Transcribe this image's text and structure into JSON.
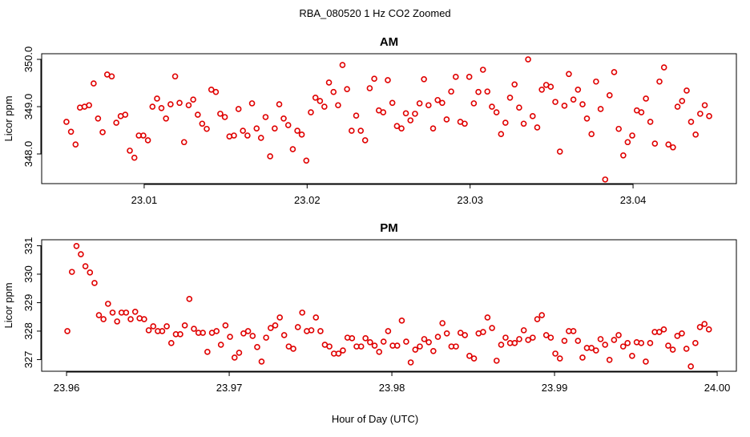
{
  "title": "RBA_080520  1 Hz CO2 Zoomed",
  "xlabel": "Hour of Day (UTC)",
  "chart_data": [
    {
      "type": "scatter",
      "title": "AM",
      "ylabel": "Licor ppm",
      "color": "#e00000",
      "xlim": [
        23.00371,
        23.04634
      ],
      "ylim": [
        347.373,
        350.119
      ],
      "xticks": [
        23.01,
        23.02,
        23.03,
        23.04
      ],
      "yticks": [
        {
          "value": 348,
          "label": "348.0"
        },
        {
          "value": 349,
          "label": "349.0"
        },
        {
          "value": 350,
          "label": "350.0"
        }
      ],
      "x": [
        23.00523,
        23.00551,
        23.00579,
        23.00606,
        23.00634,
        23.00662,
        23.0069,
        23.00717,
        23.00745,
        23.00773,
        23.00801,
        23.00829,
        23.00856,
        23.00884,
        23.00912,
        23.0094,
        23.00967,
        23.00995,
        23.01023,
        23.01051,
        23.01079,
        23.01106,
        23.01134,
        23.01162,
        23.0119,
        23.01217,
        23.01245,
        23.01273,
        23.01301,
        23.01329,
        23.01356,
        23.01384,
        23.01412,
        23.0144,
        23.01467,
        23.01495,
        23.01523,
        23.01551,
        23.01579,
        23.01606,
        23.01634,
        23.01662,
        23.0169,
        23.01717,
        23.01745,
        23.01773,
        23.01801,
        23.01829,
        23.01856,
        23.01884,
        23.01912,
        23.0194,
        23.01967,
        23.01995,
        23.02023,
        23.02051,
        23.02079,
        23.02106,
        23.02134,
        23.02162,
        23.0219,
        23.02217,
        23.02245,
        23.02273,
        23.02301,
        23.02329,
        23.02356,
        23.02384,
        23.02412,
        23.0244,
        23.02467,
        23.02495,
        23.02523,
        23.02551,
        23.02579,
        23.02606,
        23.02634,
        23.02662,
        23.0269,
        23.02717,
        23.02745,
        23.02773,
        23.02801,
        23.02829,
        23.02856,
        23.02884,
        23.02912,
        23.0294,
        23.02967,
        23.02995,
        23.03023,
        23.03051,
        23.03079,
        23.03106,
        23.03134,
        23.03162,
        23.0319,
        23.03217,
        23.03245,
        23.03273,
        23.03301,
        23.03329,
        23.03356,
        23.03384,
        23.03412,
        23.0344,
        23.03467,
        23.03495,
        23.03523,
        23.03551,
        23.03579,
        23.03606,
        23.03634,
        23.03662,
        23.0369,
        23.03717,
        23.03745,
        23.03773,
        23.03801,
        23.03829,
        23.03856,
        23.03884,
        23.03912,
        23.0394,
        23.03967,
        23.03995,
        23.04023,
        23.04051,
        23.04079,
        23.04106,
        23.04134,
        23.04162,
        23.0419,
        23.04217,
        23.04245,
        23.04273,
        23.04301,
        23.04329,
        23.04356,
        23.04384,
        23.04412,
        23.0444,
        23.04467
      ],
      "values": [
        348.68,
        348.47,
        348.2,
        348.98,
        349.0,
        349.03,
        349.49,
        348.75,
        348.46,
        349.68,
        349.64,
        348.66,
        348.8,
        348.83,
        348.07,
        347.92,
        348.39,
        348.39,
        348.29,
        349.0,
        349.17,
        348.97,
        348.75,
        349.05,
        349.64,
        349.08,
        348.25,
        349.03,
        349.15,
        348.83,
        348.64,
        348.53,
        349.36,
        349.31,
        348.85,
        348.78,
        348.37,
        348.39,
        348.95,
        348.49,
        348.39,
        349.07,
        348.54,
        348.34,
        348.78,
        347.95,
        348.54,
        349.05,
        348.75,
        348.61,
        348.1,
        348.49,
        348.41,
        347.86,
        348.88,
        349.19,
        349.12,
        349.0,
        349.51,
        349.31,
        349.03,
        349.88,
        349.37,
        348.49,
        348.81,
        348.49,
        348.29,
        349.39,
        349.59,
        348.92,
        348.88,
        349.56,
        349.08,
        348.59,
        348.54,
        348.86,
        348.71,
        348.85,
        349.07,
        349.58,
        349.03,
        348.54,
        349.14,
        349.08,
        348.73,
        349.32,
        349.63,
        348.68,
        348.64,
        349.63,
        349.07,
        349.31,
        349.78,
        349.32,
        349.0,
        348.88,
        348.42,
        348.66,
        349.19,
        349.47,
        348.98,
        348.64,
        350.0,
        348.8,
        348.56,
        349.36,
        349.46,
        349.42,
        349.1,
        348.05,
        349.02,
        349.69,
        349.15,
        349.36,
        349.05,
        348.75,
        348.42,
        349.53,
        348.95,
        347.46,
        349.24,
        349.73,
        348.53,
        347.97,
        348.25,
        348.39,
        348.92,
        348.88,
        349.17,
        348.68,
        348.22,
        349.53,
        349.83,
        348.2,
        348.14,
        349.0,
        349.12,
        349.34,
        348.68,
        348.41,
        348.85,
        349.03,
        348.8
      ]
    },
    {
      "type": "scatter",
      "title": "PM",
      "ylabel": "Licor ppm",
      "color": "#e00000",
      "xlim": [
        23.95847,
        24.00118
      ],
      "ylim": [
        326.59,
        331.21
      ],
      "xticks": [
        23.96,
        23.97,
        23.98,
        23.99,
        {
          "value": 24,
          "label": "24.00"
        }
      ],
      "yticks": [
        327,
        328,
        329,
        330,
        331
      ],
      "x": [
        23.96005,
        23.96033,
        23.96061,
        23.96088,
        23.96116,
        23.96144,
        23.96172,
        23.96199,
        23.96227,
        23.96255,
        23.96283,
        23.96311,
        23.96338,
        23.96366,
        23.96394,
        23.96422,
        23.96449,
        23.96477,
        23.96505,
        23.96533,
        23.96561,
        23.96588,
        23.96616,
        23.96644,
        23.96672,
        23.96699,
        23.96727,
        23.96755,
        23.96783,
        23.96811,
        23.96838,
        23.96866,
        23.96894,
        23.96922,
        23.96949,
        23.96977,
        23.97005,
        23.97033,
        23.97061,
        23.97088,
        23.97116,
        23.97144,
        23.97172,
        23.97199,
        23.97227,
        23.97255,
        23.97283,
        23.97311,
        23.97338,
        23.97366,
        23.97394,
        23.97422,
        23.97449,
        23.97477,
        23.97505,
        23.97533,
        23.97561,
        23.97588,
        23.97616,
        23.97644,
        23.97672,
        23.97699,
        23.97727,
        23.97755,
        23.97783,
        23.97811,
        23.97838,
        23.97866,
        23.97894,
        23.97922,
        23.97949,
        23.97977,
        23.98005,
        23.98033,
        23.98061,
        23.98088,
        23.98116,
        23.98144,
        23.98172,
        23.98199,
        23.98227,
        23.98255,
        23.98283,
        23.98311,
        23.98338,
        23.98366,
        23.98394,
        23.98422,
        23.98449,
        23.98477,
        23.98505,
        23.98533,
        23.98561,
        23.98588,
        23.98616,
        23.98644,
        23.98672,
        23.98699,
        23.98727,
        23.98755,
        23.98783,
        23.98811,
        23.98838,
        23.98866,
        23.98894,
        23.98922,
        23.98949,
        23.98977,
        23.99005,
        23.99033,
        23.99061,
        23.99088,
        23.99116,
        23.99144,
        23.99172,
        23.99199,
        23.99227,
        23.99255,
        23.99283,
        23.99311,
        23.99338,
        23.99366,
        23.99394,
        23.99422,
        23.99449,
        23.99477,
        23.99505,
        23.99533,
        23.99561,
        23.99588,
        23.99616,
        23.99644,
        23.99672,
        23.99699,
        23.99727,
        23.99755,
        23.99783,
        23.99811,
        23.99838,
        23.99866,
        23.99894,
        23.99922,
        23.99949
      ],
      "values": [
        328.0,
        330.08,
        330.99,
        330.7,
        330.28,
        330.06,
        329.69,
        328.56,
        328.42,
        328.96,
        328.65,
        328.34,
        328.65,
        328.65,
        328.42,
        328.68,
        328.45,
        328.42,
        328.03,
        328.17,
        328.0,
        328.0,
        328.17,
        327.58,
        327.89,
        327.89,
        328.2,
        329.13,
        328.08,
        327.94,
        327.94,
        327.27,
        327.94,
        328.0,
        327.52,
        328.2,
        327.8,
        327.07,
        327.24,
        327.92,
        328.0,
        327.83,
        327.44,
        326.93,
        327.77,
        328.11,
        328.2,
        328.48,
        327.86,
        327.46,
        327.38,
        328.14,
        328.65,
        328.0,
        328.03,
        328.48,
        328.0,
        327.52,
        327.46,
        327.21,
        327.21,
        327.32,
        327.77,
        327.75,
        327.46,
        327.46,
        327.75,
        327.61,
        327.49,
        327.27,
        327.63,
        328.0,
        327.49,
        327.49,
        328.37,
        327.63,
        326.9,
        327.35,
        327.46,
        327.72,
        327.61,
        327.3,
        327.8,
        328.28,
        327.92,
        327.46,
        327.46,
        327.94,
        327.86,
        327.13,
        327.04,
        327.92,
        327.97,
        328.48,
        328.11,
        326.96,
        327.52,
        327.77,
        327.58,
        327.58,
        327.72,
        328.03,
        327.69,
        327.77,
        328.42,
        328.56,
        327.86,
        327.77,
        327.21,
        327.04,
        327.66,
        328.0,
        328.0,
        327.66,
        327.07,
        327.41,
        327.41,
        327.32,
        327.72,
        327.52,
        326.99,
        327.69,
        327.86,
        327.46,
        327.58,
        327.13,
        327.61,
        327.58,
        326.93,
        327.58,
        327.97,
        327.97,
        328.06,
        327.49,
        327.35,
        327.83,
        327.92,
        327.38,
        326.76,
        327.58,
        328.14,
        328.25,
        328.06
      ]
    }
  ]
}
